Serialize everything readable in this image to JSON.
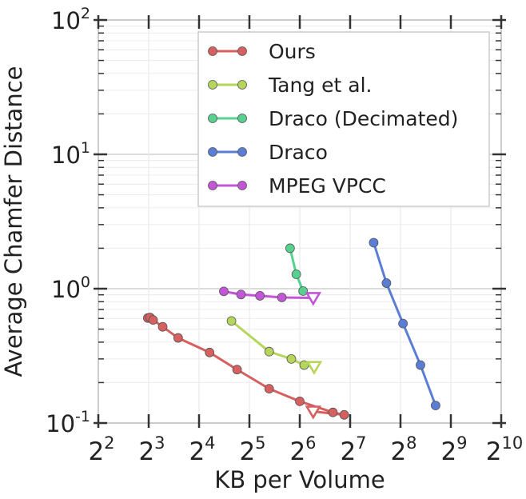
{
  "chart_data": {
    "type": "line",
    "title": "",
    "xlabel": "KB per Volume",
    "ylabel": "Average Chamfer Distance",
    "x_scale": "log2",
    "y_scale": "log10",
    "xlim": [
      4,
      1024
    ],
    "ylim": [
      0.1,
      100
    ],
    "x_ticks": [
      {
        "value": 4,
        "base": "2",
        "exp": "2"
      },
      {
        "value": 8,
        "base": "2",
        "exp": "3"
      },
      {
        "value": 16,
        "base": "2",
        "exp": "4"
      },
      {
        "value": 32,
        "base": "2",
        "exp": "5"
      },
      {
        "value": 64,
        "base": "2",
        "exp": "6"
      },
      {
        "value": 128,
        "base": "2",
        "exp": "7"
      },
      {
        "value": 256,
        "base": "2",
        "exp": "8"
      },
      {
        "value": 512,
        "base": "2",
        "exp": "9"
      },
      {
        "value": 1024,
        "base": "2",
        "exp": "10"
      }
    ],
    "y_ticks": [
      {
        "value": 0.1,
        "base": "10",
        "exp": "-1"
      },
      {
        "value": 1,
        "base": "10",
        "exp": "0"
      },
      {
        "value": 10,
        "base": "10",
        "exp": "1"
      },
      {
        "value": 100,
        "base": "10",
        "exp": "2"
      }
    ],
    "legend_position": "top-right",
    "grid": true,
    "series": [
      {
        "name": "Ours",
        "color": "#d65f5f",
        "x": [
          7.9,
          8.15,
          8.5,
          9.7,
          12.0,
          18.5,
          27.0,
          42.0,
          64.0,
          101.0,
          118.0
        ],
        "y": [
          0.605,
          0.61,
          0.585,
          0.52,
          0.43,
          0.335,
          0.25,
          0.18,
          0.145,
          0.12,
          0.115
        ],
        "marker_triangle": {
          "x": 77.0,
          "y": 0.122
        }
      },
      {
        "name": "Tang et al.",
        "color": "#b5d65a",
        "x": [
          25.0,
          42.0,
          57.0,
          68.0
        ],
        "y": [
          0.575,
          0.34,
          0.3,
          0.27
        ],
        "marker_triangle": {
          "x": 78.0,
          "y": 0.262
        }
      },
      {
        "name": "Draco (Decimated)",
        "color": "#57d190",
        "x": [
          56.0,
          61.0,
          67.0
        ],
        "y": [
          2.0,
          1.28,
          0.96
        ],
        "marker_triangle": null
      },
      {
        "name": "Draco",
        "color": "#5a7ed6",
        "x": [
          177.0,
          211.0,
          265.0,
          337.0,
          415.0
        ],
        "y": [
          2.2,
          1.1,
          0.55,
          0.27,
          0.135
        ],
        "marker_triangle": null
      },
      {
        "name": "MPEG VPCC",
        "color": "#c256d6",
        "x": [
          22.5,
          28.5,
          37.0,
          50.0
        ],
        "y": [
          0.955,
          0.905,
          0.885,
          0.86
        ],
        "marker_triangle": {
          "x": 77.0,
          "y": 0.855
        }
      }
    ]
  }
}
